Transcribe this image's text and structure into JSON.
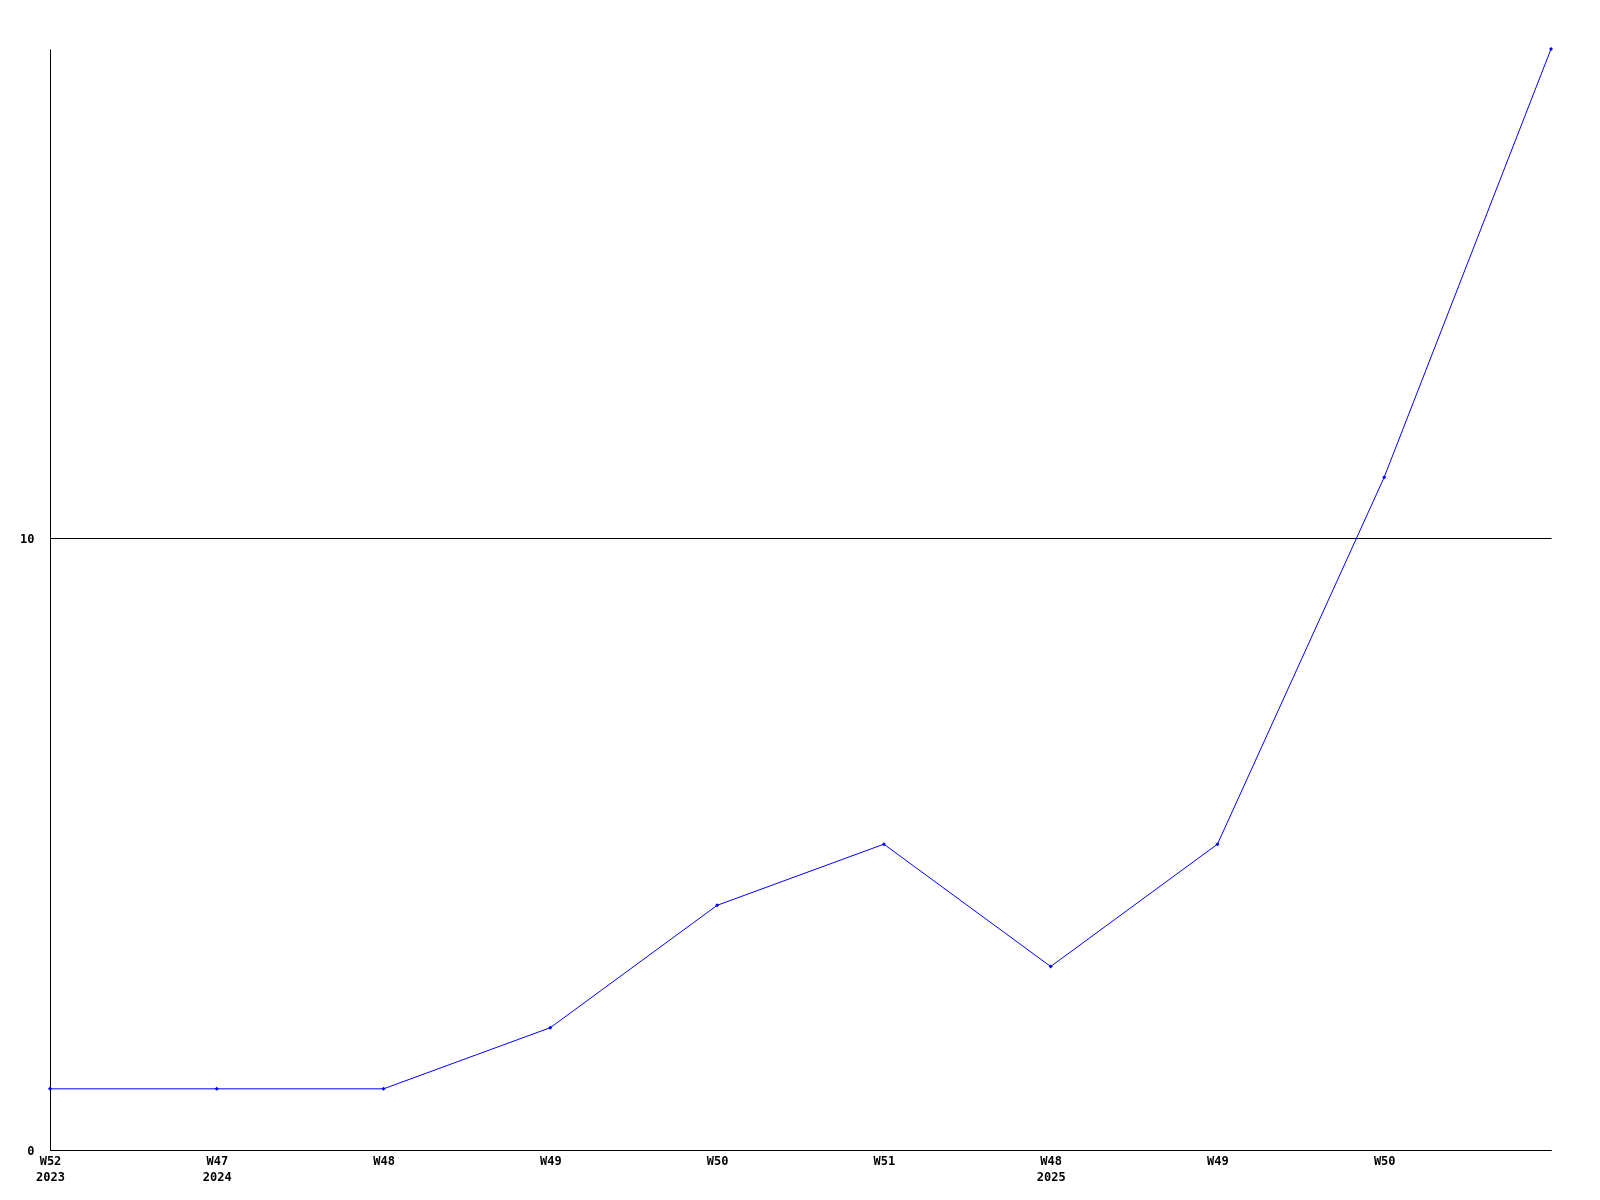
{
  "chart_data": {
    "type": "line",
    "categories": [
      "W52\n2023",
      "W47\n2024",
      "W48",
      "W49",
      "W50",
      "W51",
      "W48\n2025",
      "W49",
      "W50",
      null
    ],
    "series": [
      {
        "color": "#0000ff",
        "values": [
          1,
          1,
          1,
          2,
          4,
          5,
          3,
          5,
          11,
          18
        ]
      }
    ],
    "ylim": [
      0,
      18
    ],
    "yticks": [
      0,
      10
    ],
    "grid": "y",
    "marker": "diamond",
    "line_style": "solid",
    "legend": false
  }
}
